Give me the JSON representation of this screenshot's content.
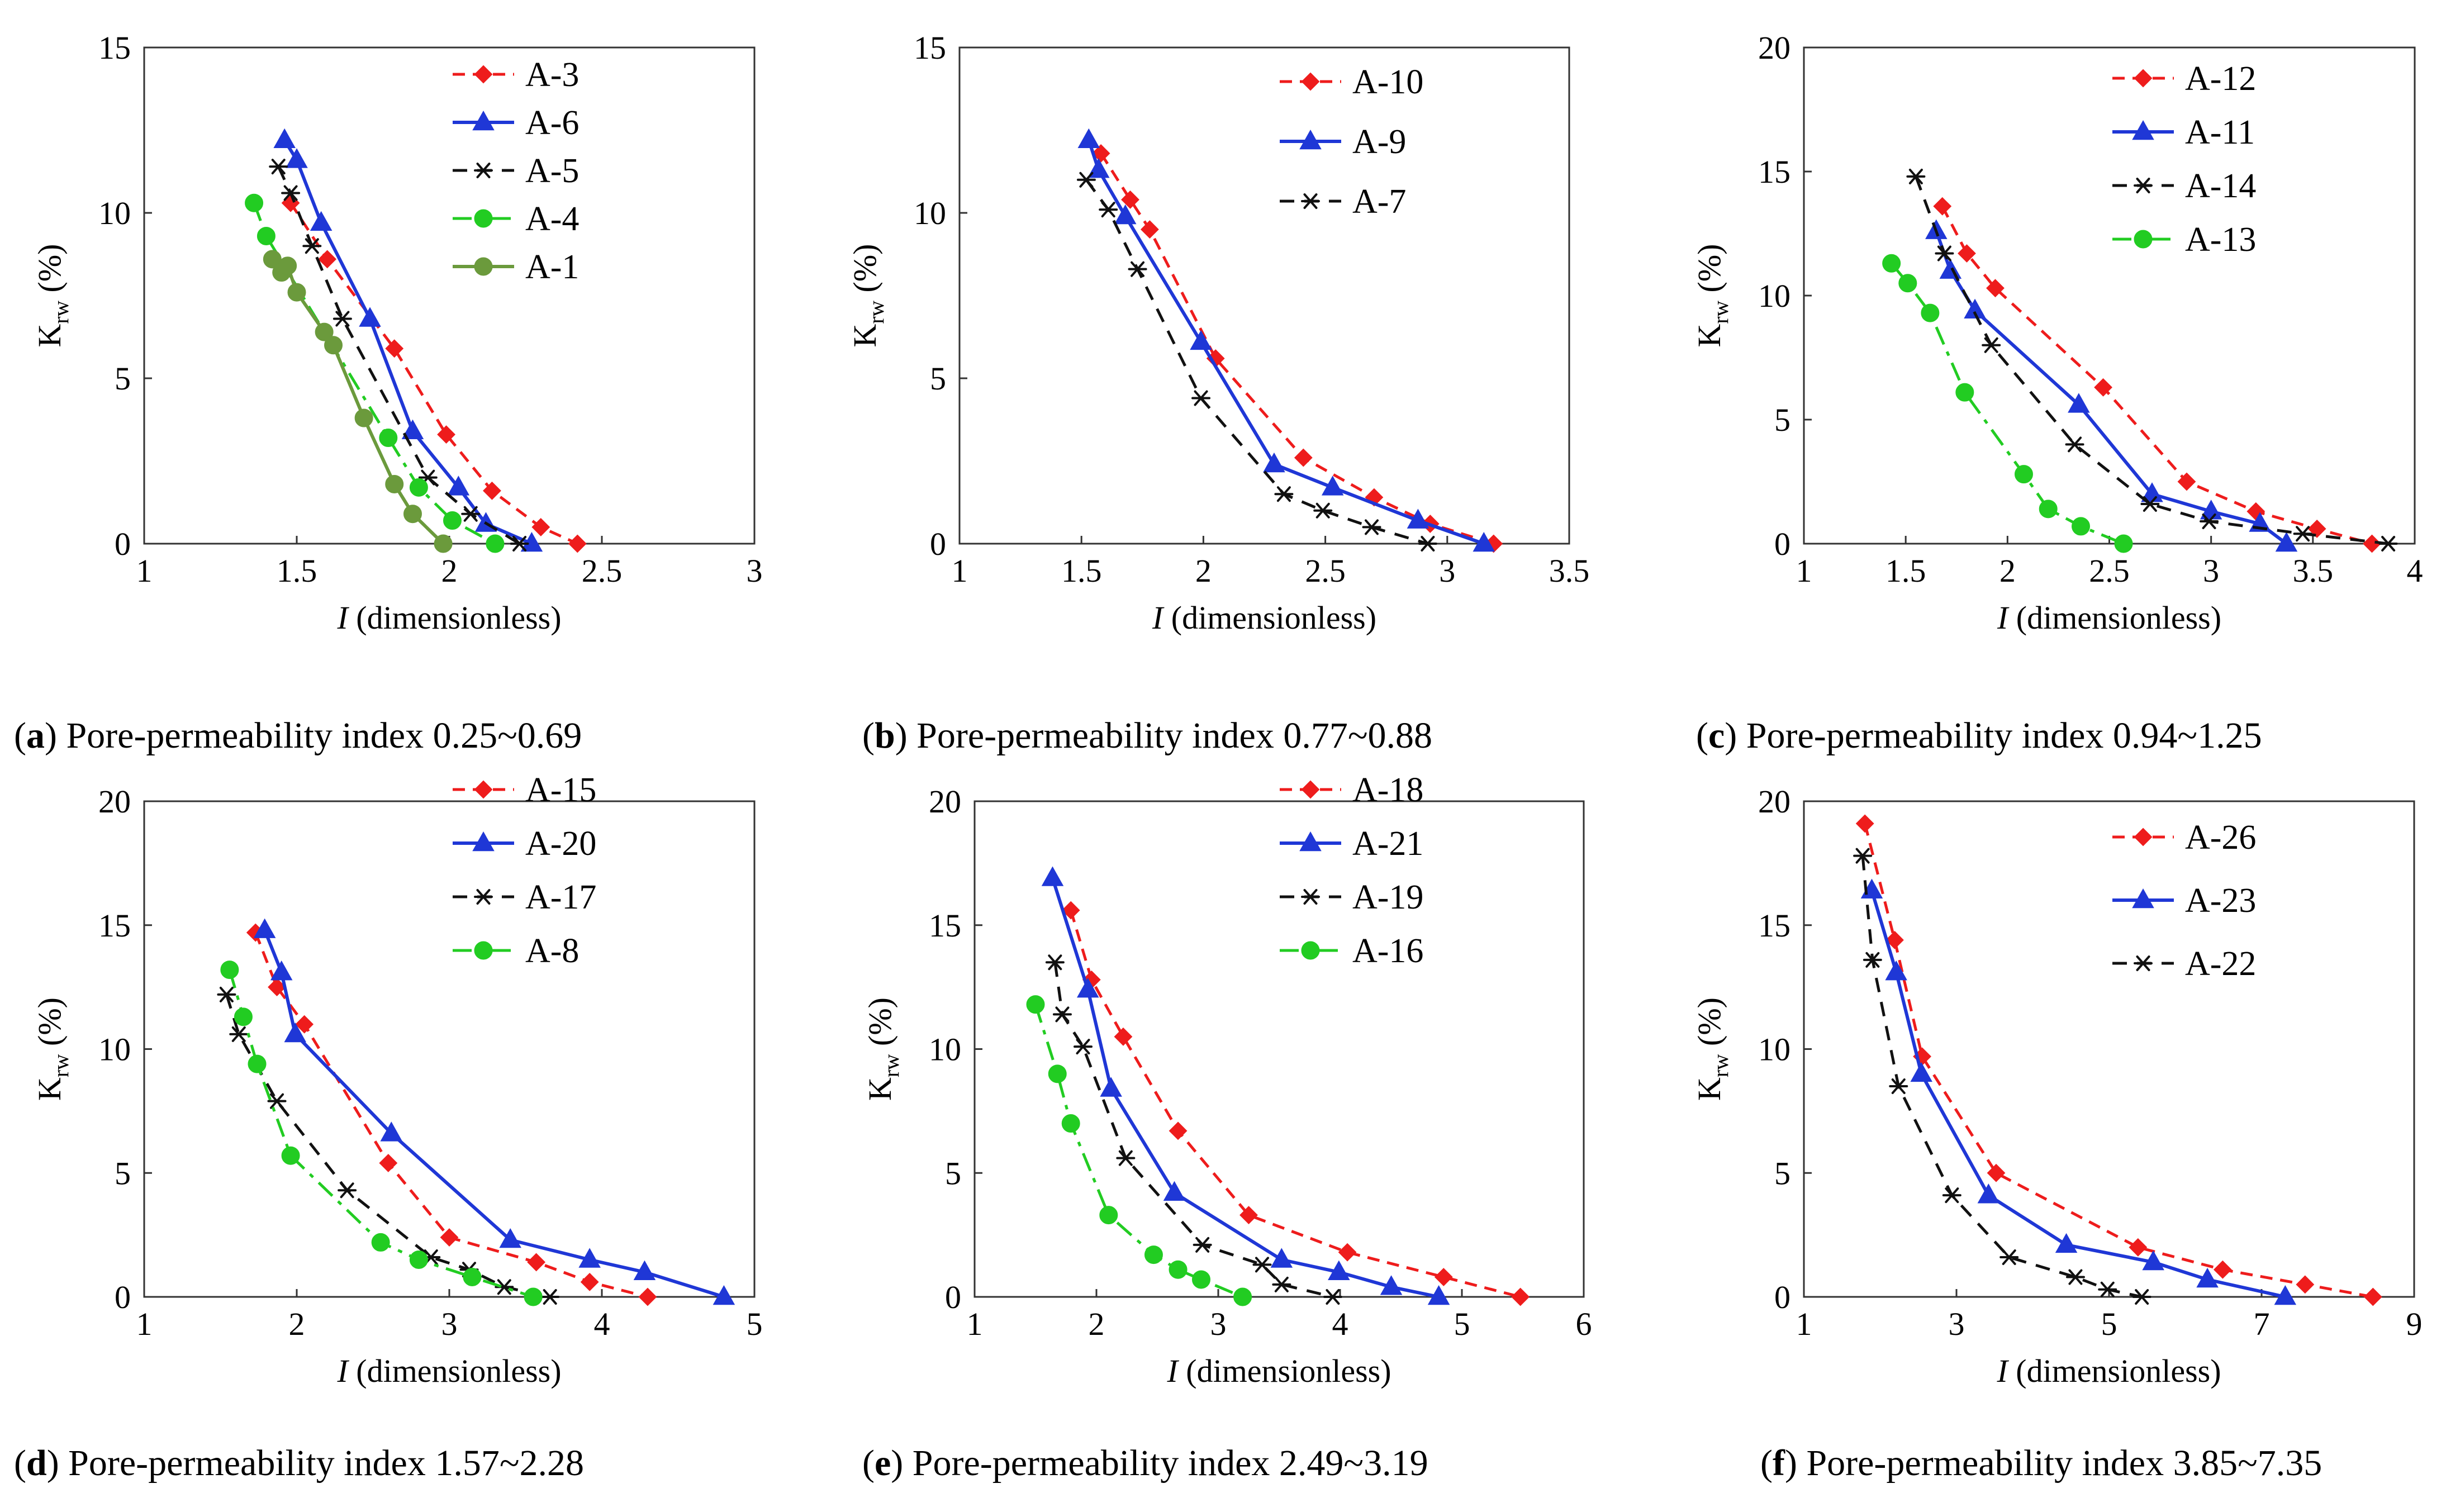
{
  "figure": {
    "axis_symbol": "I",
    "axis_unit": "(dimensionless)",
    "ylabel_main": "K",
    "ylabel_sub": "rw",
    "ylabel_unit": "(%)"
  },
  "series_styles": {
    "red_diamond_dash": {
      "color": "#ee1c1c",
      "marker": "diamond",
      "dash": "short"
    },
    "blue_triangle_solid": {
      "color": "#1f37d6",
      "marker": "triangle",
      "dash": "solid"
    },
    "black_star_dash": {
      "color": "#111111",
      "marker": "star",
      "dash": "long"
    },
    "green_circle_dashdot": {
      "color": "#22cc22",
      "marker": "circle",
      "dash": "dashdot"
    },
    "olive_circle_solid": {
      "color": "#6b9a3c",
      "marker": "circle",
      "dash": "solid"
    }
  },
  "chart_data": [
    {
      "type": "line",
      "panel_letter": "a",
      "caption": "Pore-permeability index 0.25~0.69",
      "xlabel": "I (dimensionless)",
      "ylabel": "Krw (%)",
      "xlim": [
        1,
        3
      ],
      "xticks": [
        1,
        1.5,
        2,
        2.5,
        3
      ],
      "xtick_labels": [
        "1",
        "1.5",
        "2",
        "2.5",
        "3"
      ],
      "ylim": [
        0,
        15
      ],
      "yticks": [
        0,
        5,
        10,
        15
      ],
      "ytick_labels": [
        "0",
        "5",
        "10",
        "15"
      ],
      "series": [
        {
          "name": "A-3",
          "style": "red_diamond_dash",
          "x": [
            1.48,
            1.6,
            1.82,
            1.99,
            2.14,
            2.3,
            2.42
          ],
          "y": [
            10.3,
            8.6,
            5.9,
            3.3,
            1.6,
            0.5,
            0.0
          ]
        },
        {
          "name": "A-6",
          "style": "blue_triangle_solid",
          "x": [
            1.46,
            1.5,
            1.58,
            1.74,
            1.88,
            2.03,
            2.12,
            2.27
          ],
          "y": [
            12.2,
            11.6,
            9.7,
            6.8,
            3.4,
            1.7,
            0.6,
            0.0
          ]
        },
        {
          "name": "A-5",
          "style": "black_star_dash",
          "x": [
            1.44,
            1.48,
            1.55,
            1.65,
            1.93,
            2.07,
            2.23
          ],
          "y": [
            11.4,
            10.6,
            9.0,
            6.8,
            2.0,
            0.9,
            0.0
          ]
        },
        {
          "name": "A-4",
          "style": "green_circle_dashdot",
          "x": [
            1.36,
            1.4,
            1.8,
            1.9,
            2.01,
            2.15
          ],
          "y": [
            10.3,
            9.3,
            3.2,
            1.7,
            0.7,
            0.0
          ]
        },
        {
          "name": "A-1",
          "style": "olive_circle_solid",
          "x": [
            1.42,
            1.45,
            1.47,
            1.5,
            1.59,
            1.62,
            1.72,
            1.82,
            1.88,
            1.98
          ],
          "y": [
            8.6,
            8.2,
            8.4,
            7.6,
            6.4,
            6.0,
            3.8,
            1.8,
            0.9,
            0.0
          ]
        }
      ]
    },
    {
      "type": "line",
      "panel_letter": "b",
      "caption": "Pore-permeability index 0.77~0.88",
      "xlabel": "I (dimensionless)",
      "ylabel": "Krw (%)",
      "xlim": [
        1,
        3.5
      ],
      "xticks": [
        1,
        1.5,
        2,
        2.5,
        3,
        3.5
      ],
      "xtick_labels": [
        "1",
        "1.5",
        "2",
        "2.5",
        "3",
        "3.5"
      ],
      "ylim": [
        0,
        15
      ],
      "yticks": [
        0,
        5,
        10,
        15
      ],
      "ytick_labels": [
        "0",
        "5",
        "10",
        "15"
      ],
      "series": [
        {
          "name": "A-10",
          "style": "red_diamond_dash",
          "x": [
            1.58,
            1.7,
            1.78,
            2.05,
            2.41,
            2.7,
            2.93,
            3.19
          ],
          "y": [
            11.8,
            10.4,
            9.5,
            5.6,
            2.6,
            1.4,
            0.6,
            0.0
          ]
        },
        {
          "name": "A-9",
          "style": "blue_triangle_solid",
          "x": [
            1.53,
            1.57,
            1.68,
            1.99,
            2.29,
            2.53,
            2.88,
            3.15
          ],
          "y": [
            12.2,
            11.3,
            9.9,
            6.1,
            2.4,
            1.7,
            0.7,
            0.0
          ]
        },
        {
          "name": "A-7",
          "style": "black_star_dash",
          "x": [
            1.52,
            1.61,
            1.73,
            1.99,
            2.33,
            2.49,
            2.69,
            2.92
          ],
          "y": [
            11.0,
            10.1,
            8.3,
            4.4,
            1.5,
            1.0,
            0.5,
            0.0
          ]
        }
      ]
    },
    {
      "type": "line",
      "panel_letter": "c",
      "caption": "Pore-permeability index 0.94~1.25",
      "xlabel": "I (dimensionless)",
      "ylabel": "Krw (%)",
      "xlim": [
        1,
        4
      ],
      "xticks": [
        1,
        1.5,
        2,
        2.5,
        3,
        3.5,
        4
      ],
      "xtick_labels": [
        "1",
        "1.5",
        "2",
        "2.5",
        "3",
        "3.5",
        "4"
      ],
      "ylim": [
        0,
        20
      ],
      "yticks": [
        0,
        5,
        10,
        15,
        20
      ],
      "ytick_labels": [
        "0",
        "5",
        "10",
        "15",
        "20"
      ],
      "series": [
        {
          "name": "A-12",
          "style": "red_diamond_dash",
          "x": [
            1.68,
            1.8,
            1.94,
            2.47,
            2.88,
            3.22,
            3.52,
            3.79
          ],
          "y": [
            13.6,
            11.7,
            10.3,
            6.3,
            2.5,
            1.3,
            0.6,
            0.0
          ]
        },
        {
          "name": "A-11",
          "style": "blue_triangle_solid",
          "x": [
            1.65,
            1.72,
            1.84,
            2.35,
            2.71,
            3.0,
            3.24,
            3.37
          ],
          "y": [
            12.6,
            11.0,
            9.4,
            5.6,
            2.0,
            1.3,
            0.8,
            0.0
          ]
        },
        {
          "name": "A-14",
          "style": "black_star_dash",
          "x": [
            1.55,
            1.69,
            1.92,
            2.33,
            2.7,
            2.99,
            3.45,
            3.87
          ],
          "y": [
            14.8,
            11.7,
            8.0,
            4.0,
            1.6,
            0.9,
            0.4,
            0.0
          ]
        },
        {
          "name": "A-13",
          "style": "green_circle_dashdot",
          "x": [
            1.43,
            1.51,
            1.62,
            1.79,
            2.08,
            2.2,
            2.36,
            2.57
          ],
          "y": [
            11.3,
            10.5,
            9.3,
            6.1,
            2.8,
            1.4,
            0.7,
            0.0
          ]
        }
      ]
    },
    {
      "type": "line",
      "panel_letter": "d",
      "caption": "Pore-permeability index 1.57~2.28",
      "xlabel": "I (dimensionless)",
      "ylabel": "Krw (%)",
      "xlim": [
        1,
        5
      ],
      "xticks": [
        1,
        2,
        3,
        4,
        5
      ],
      "xtick_labels": [
        "1",
        "2",
        "3",
        "4",
        "5"
      ],
      "ylim": [
        0,
        20
      ],
      "yticks": [
        0,
        5,
        10,
        15,
        20
      ],
      "ytick_labels": [
        "0",
        "5",
        "10",
        "15",
        "20"
      ],
      "series": [
        {
          "name": "A-15",
          "style": "red_diamond_dash",
          "x": [
            1.73,
            1.87,
            2.05,
            2.6,
            3.0,
            3.57,
            3.92,
            4.3
          ],
          "y": [
            14.7,
            12.5,
            11.0,
            5.4,
            2.4,
            1.4,
            0.6,
            0.0
          ]
        },
        {
          "name": "A-20",
          "style": "blue_triangle_solid",
          "x": [
            1.79,
            1.9,
            1.99,
            2.62,
            3.4,
            3.92,
            4.28,
            4.8
          ],
          "y": [
            14.8,
            13.1,
            10.6,
            6.6,
            2.3,
            1.5,
            1.0,
            0.0
          ]
        },
        {
          "name": "A-17",
          "style": "black_star_dash",
          "x": [
            1.54,
            1.62,
            1.87,
            2.33,
            2.88,
            3.13,
            3.36,
            3.66
          ],
          "y": [
            12.2,
            10.6,
            7.9,
            4.3,
            1.6,
            1.1,
            0.4,
            0.0
          ]
        },
        {
          "name": "A-8",
          "style": "green_circle_dashdot",
          "x": [
            1.56,
            1.65,
            1.74,
            1.96,
            2.55,
            2.8,
            3.15,
            3.55
          ],
          "y": [
            13.2,
            11.3,
            9.4,
            5.7,
            2.2,
            1.5,
            0.8,
            0.0
          ]
        }
      ]
    },
    {
      "type": "line",
      "panel_letter": "e",
      "caption": "Pore-permeability index 2.49~3.19",
      "xlabel": "I (dimensionless)",
      "ylabel": "Krw (%)",
      "xlim": [
        1,
        6
      ],
      "xticks": [
        1,
        2,
        3,
        4,
        5,
        6
      ],
      "xtick_labels": [
        "1",
        "2",
        "3",
        "4",
        "5",
        "6"
      ],
      "ylim": [
        0,
        20
      ],
      "yticks": [
        0,
        5,
        10,
        15,
        20
      ],
      "ytick_labels": [
        "0",
        "5",
        "10",
        "15",
        "20"
      ],
      "series": [
        {
          "name": "A-18",
          "style": "red_diamond_dash",
          "x": [
            1.79,
            1.96,
            2.22,
            2.67,
            3.25,
            4.06,
            4.85,
            5.48
          ],
          "y": [
            15.6,
            12.8,
            10.5,
            6.7,
            3.3,
            1.8,
            0.8,
            0.0
          ]
        },
        {
          "name": "A-21",
          "style": "blue_triangle_solid",
          "x": [
            1.64,
            1.93,
            2.12,
            2.64,
            3.52,
            3.99,
            4.42,
            4.81
          ],
          "y": [
            16.9,
            12.4,
            8.4,
            4.2,
            1.5,
            1.0,
            0.4,
            0.0
          ]
        },
        {
          "name": "A-19",
          "style": "black_star_dash",
          "x": [
            1.66,
            1.72,
            1.89,
            2.24,
            2.87,
            3.36,
            3.52,
            3.94
          ],
          "y": [
            13.5,
            11.4,
            10.1,
            5.6,
            2.1,
            1.3,
            0.5,
            0.0
          ]
        },
        {
          "name": "A-16",
          "style": "green_circle_dashdot",
          "x": [
            1.5,
            1.68,
            1.79,
            2.1,
            2.47,
            2.67,
            2.86,
            3.2
          ],
          "y": [
            11.8,
            9.0,
            7.0,
            3.3,
            1.7,
            1.1,
            0.7,
            0.0
          ]
        }
      ]
    },
    {
      "type": "line",
      "panel_letter": "f",
      "caption": "Pore-permeability index 3.85~7.35",
      "xlabel": "I (dimensionless)",
      "ylabel": "Krw (%)",
      "xlim": [
        1,
        9
      ],
      "xticks": [
        1,
        3,
        5,
        7,
        9
      ],
      "xtick_labels": [
        "1",
        "3",
        "5",
        "7",
        "9"
      ],
      "ylim": [
        0,
        20
      ],
      "yticks": [
        0,
        5,
        10,
        15,
        20
      ],
      "ytick_labels": [
        "0",
        "5",
        "10",
        "15",
        "20"
      ],
      "series": [
        {
          "name": "A-26",
          "style": "red_diamond_dash",
          "x": [
            1.8,
            2.19,
            2.55,
            3.52,
            5.38,
            6.49,
            7.57,
            8.46
          ],
          "y": [
            19.1,
            14.4,
            9.7,
            5.0,
            2.0,
            1.1,
            0.5,
            0.0
          ]
        },
        {
          "name": "A-23",
          "style": "blue_triangle_solid",
          "x": [
            1.89,
            2.21,
            2.54,
            3.42,
            4.44,
            5.58,
            6.29,
            7.31
          ],
          "y": [
            16.4,
            13.1,
            9.0,
            4.1,
            2.1,
            1.4,
            0.7,
            0.0
          ]
        },
        {
          "name": "A-22",
          "style": "black_star_dash",
          "x": [
            1.77,
            1.9,
            2.24,
            2.94,
            3.69,
            4.56,
            4.98,
            5.43
          ],
          "y": [
            17.8,
            13.6,
            8.5,
            4.1,
            1.6,
            0.8,
            0.3,
            0.0
          ]
        }
      ]
    }
  ]
}
